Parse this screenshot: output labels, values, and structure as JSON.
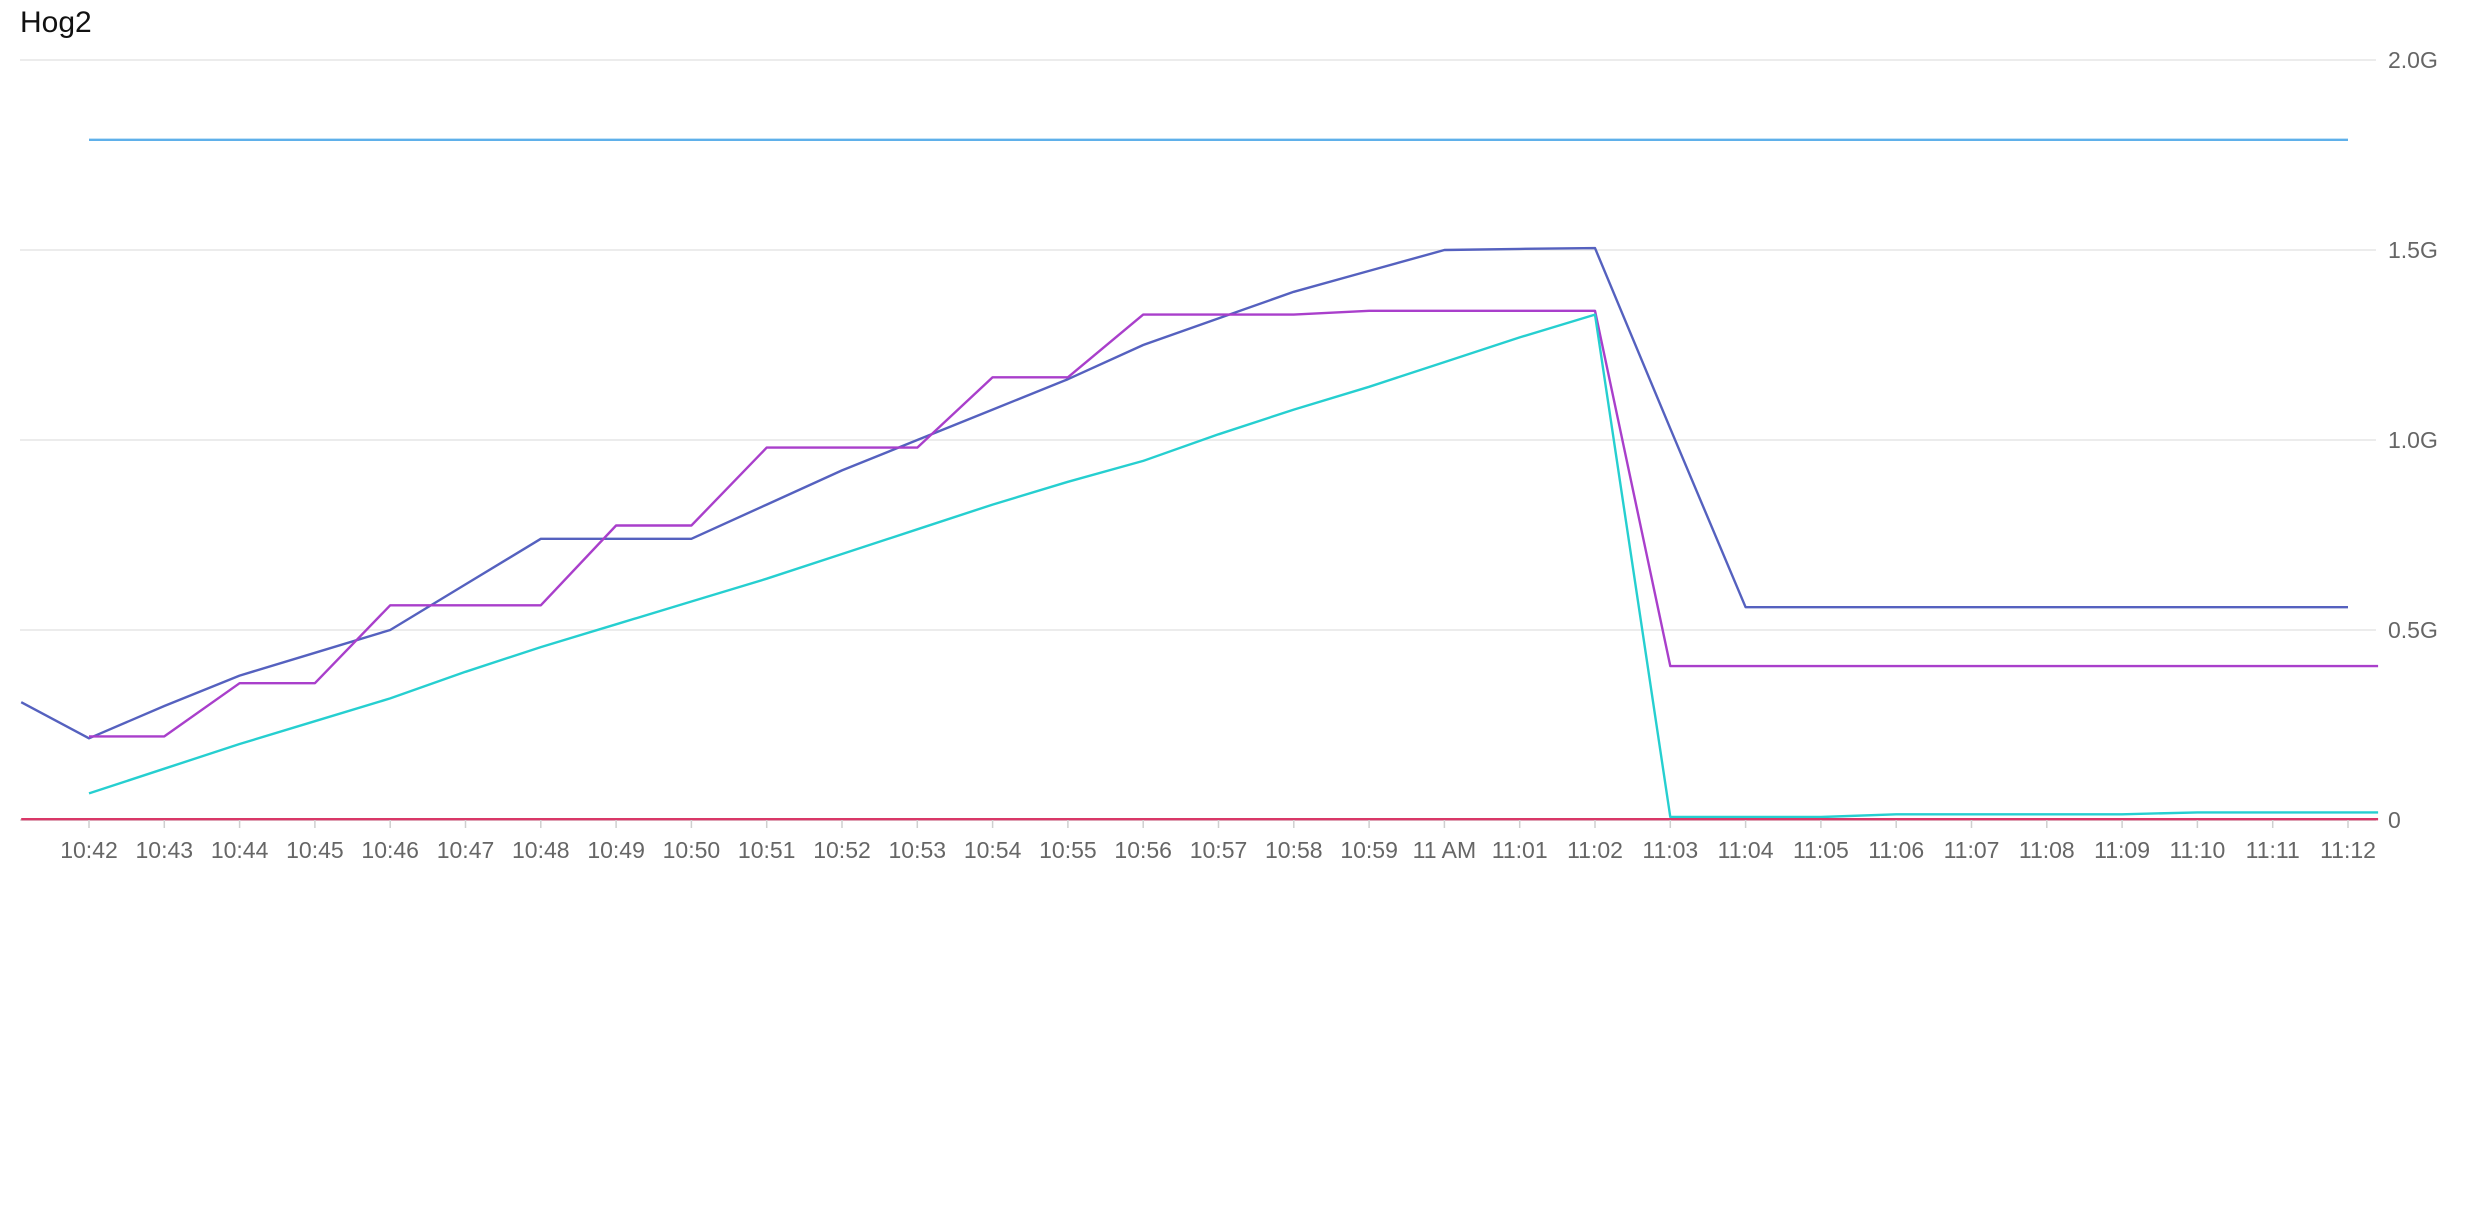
{
  "panel": {
    "title": "Hog2"
  },
  "chart_data": {
    "type": "line",
    "title": "Hog2",
    "x_unit": "minutes since 10:42",
    "x_ticks": [
      {
        "t": 0,
        "label": "10:42"
      },
      {
        "t": 1,
        "label": "10:43"
      },
      {
        "t": 2,
        "label": "10:44"
      },
      {
        "t": 3,
        "label": "10:45"
      },
      {
        "t": 4,
        "label": "10:46"
      },
      {
        "t": 5,
        "label": "10:47"
      },
      {
        "t": 6,
        "label": "10:48"
      },
      {
        "t": 7,
        "label": "10:49"
      },
      {
        "t": 8,
        "label": "10:50"
      },
      {
        "t": 9,
        "label": "10:51"
      },
      {
        "t": 10,
        "label": "10:52"
      },
      {
        "t": 11,
        "label": "10:53"
      },
      {
        "t": 12,
        "label": "10:54"
      },
      {
        "t": 13,
        "label": "10:55"
      },
      {
        "t": 14,
        "label": "10:56"
      },
      {
        "t": 15,
        "label": "10:57"
      },
      {
        "t": 16,
        "label": "10:58"
      },
      {
        "t": 17,
        "label": "10:59"
      },
      {
        "t": 18,
        "label": "11 AM"
      },
      {
        "t": 19,
        "label": "11:01"
      },
      {
        "t": 20,
        "label": "11:02"
      },
      {
        "t": 21,
        "label": "11:03"
      },
      {
        "t": 22,
        "label": "11:04"
      },
      {
        "t": 23,
        "label": "11:05"
      },
      {
        "t": 24,
        "label": "11:06"
      },
      {
        "t": 25,
        "label": "11:07"
      },
      {
        "t": 26,
        "label": "11:08"
      },
      {
        "t": 27,
        "label": "11:09"
      },
      {
        "t": 28,
        "label": "11:10"
      },
      {
        "t": 29,
        "label": "11:11"
      },
      {
        "t": 30,
        "label": "11:12"
      }
    ],
    "y_axis": {
      "position": "right",
      "unit": "G",
      "ylim": [
        0,
        2.0
      ],
      "ticks": [
        {
          "v": 0,
          "label": "0"
        },
        {
          "v": 0.5,
          "label": "0.5G"
        },
        {
          "v": 1.0,
          "label": "1.0G"
        },
        {
          "v": 1.5,
          "label": "1.5G"
        },
        {
          "v": 2.0,
          "label": "2.0G"
        }
      ]
    },
    "xlim": [
      -0.9,
      30.4
    ],
    "grid": true,
    "legend": "none",
    "series": [
      {
        "color": "#5fb0ea",
        "x": [
          0,
          30
        ],
        "y": [
          1.79,
          1.79
        ]
      },
      {
        "color": "#5561bf",
        "x": [
          -0.9,
          0,
          1,
          2,
          3,
          4,
          5,
          6,
          7,
          8,
          9,
          10,
          11,
          12,
          13,
          14,
          15,
          16,
          17,
          18,
          19,
          20,
          21,
          22,
          30
        ],
        "y": [
          0.31,
          0.215,
          0.3,
          0.38,
          0.44,
          0.5,
          0.62,
          0.74,
          0.74,
          0.74,
          0.83,
          0.92,
          1.0,
          1.08,
          1.16,
          1.25,
          1.32,
          1.39,
          1.445,
          1.5,
          1.503,
          1.505,
          1.03,
          0.56,
          0.56
        ]
      },
      {
        "color": "#a93fcb",
        "x": [
          0,
          1,
          2,
          3,
          4,
          5,
          6,
          7,
          8,
          9,
          10,
          11,
          12,
          13,
          14,
          15,
          16,
          17,
          18,
          19,
          20,
          21,
          22,
          30.4
        ],
        "y": [
          0.22,
          0.22,
          0.36,
          0.36,
          0.565,
          0.565,
          0.565,
          0.775,
          0.775,
          0.98,
          0.98,
          0.98,
          1.165,
          1.165,
          1.33,
          1.33,
          1.33,
          1.34,
          1.34,
          1.34,
          1.34,
          0.405,
          0.405,
          0.405
        ]
      },
      {
        "color": "#26cfd0",
        "x": [
          0,
          1,
          2,
          3,
          4,
          5,
          6,
          7,
          8,
          9,
          10,
          11,
          12,
          13,
          14,
          15,
          16,
          17,
          18,
          19,
          20,
          21,
          22,
          23,
          24,
          25,
          26,
          27,
          28,
          29,
          30.4
        ],
        "y": [
          0.07,
          0.135,
          0.2,
          0.26,
          0.32,
          0.39,
          0.455,
          0.515,
          0.575,
          0.635,
          0.7,
          0.765,
          0.83,
          0.89,
          0.945,
          1.015,
          1.08,
          1.14,
          1.205,
          1.27,
          1.33,
          0.008,
          0.008,
          0.008,
          0.015,
          0.015,
          0.015,
          0.015,
          0.02,
          0.02,
          0.02
        ]
      },
      {
        "color": "#d93868",
        "x": [
          -0.9,
          30.4
        ],
        "y": [
          0.002,
          0.002
        ]
      }
    ]
  }
}
